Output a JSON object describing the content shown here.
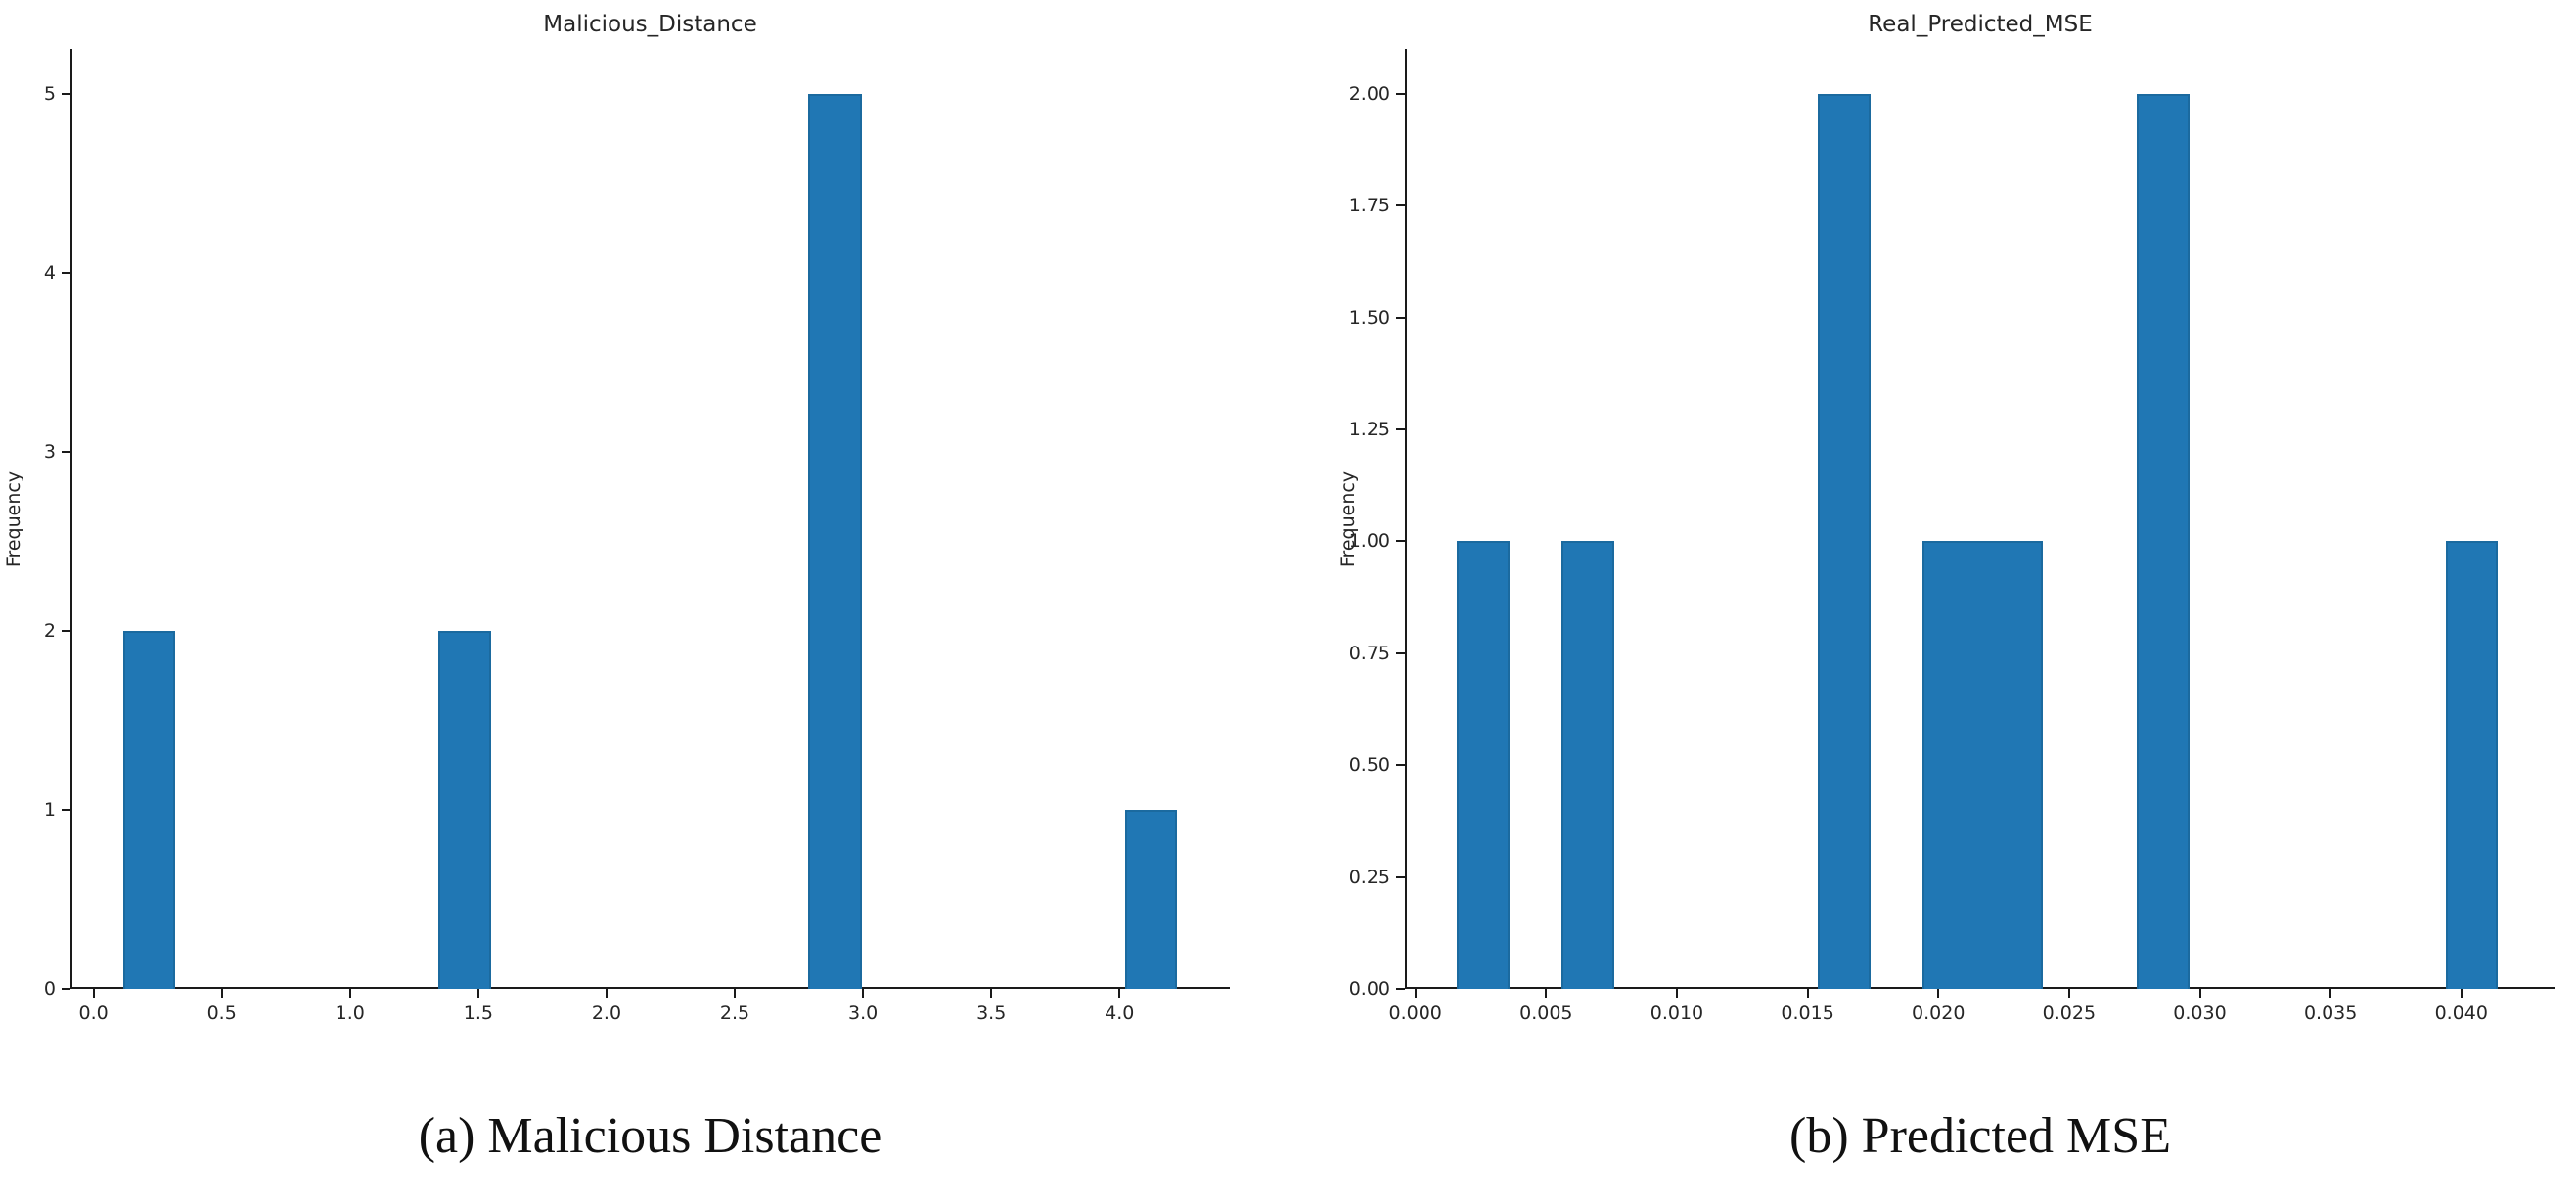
{
  "figure": {
    "background": "#ffffff"
  },
  "chart_data": [
    {
      "type": "bar",
      "subtype": "histogram",
      "title": "Malicious_Distance",
      "xlabel": "",
      "ylabel": "Frequency",
      "caption": "(a) Malicious Distance",
      "bar_color": "#2077b4",
      "bar_edge_color": "#1b6a9f",
      "grid": false,
      "xlim": [
        -0.09,
        4.43
      ],
      "ylim": [
        0,
        5.25
      ],
      "xticks": [
        0.0,
        0.5,
        1.0,
        1.5,
        2.0,
        2.5,
        3.0,
        3.5,
        4.0
      ],
      "xtick_labels": [
        "0.0",
        "0.5",
        "1.0",
        "1.5",
        "2.0",
        "2.5",
        "3.0",
        "3.5",
        "4.0"
      ],
      "yticks": [
        0,
        1,
        2,
        3,
        4,
        5
      ],
      "ytick_labels": [
        "0",
        "1",
        "2",
        "3",
        "4",
        "5"
      ],
      "bars": [
        {
          "x0": 0.115,
          "x1": 0.32,
          "frequency": 2
        },
        {
          "x0": 1.345,
          "x1": 1.55,
          "frequency": 2
        },
        {
          "x0": 2.785,
          "x1": 2.995,
          "frequency": 5
        },
        {
          "x0": 4.02,
          "x1": 4.225,
          "frequency": 1
        }
      ]
    },
    {
      "type": "bar",
      "subtype": "histogram",
      "title": "Real_Predicted_MSE",
      "xlabel": "",
      "ylabel": "Frequency",
      "caption": "(b) Predicted MSE",
      "bar_color": "#2077b4",
      "bar_edge_color": "#1b6a9f",
      "grid": false,
      "xlim": [
        -0.0004,
        0.0436
      ],
      "ylim": [
        0,
        2.1
      ],
      "xticks": [
        0.0,
        0.005,
        0.01,
        0.015,
        0.02,
        0.025,
        0.03,
        0.035,
        0.04
      ],
      "xtick_labels": [
        "0.000",
        "0.005",
        "0.010",
        "0.015",
        "0.020",
        "0.025",
        "0.030",
        "0.035",
        "0.040"
      ],
      "yticks": [
        0.0,
        0.25,
        0.5,
        0.75,
        1.0,
        1.25,
        1.5,
        1.75,
        2.0
      ],
      "ytick_labels": [
        "0.00",
        "0.25",
        "0.50",
        "0.75",
        "1.00",
        "1.25",
        "1.50",
        "1.75",
        "2.00"
      ],
      "bars": [
        {
          "x0": 0.0016,
          "x1": 0.0036,
          "frequency": 1
        },
        {
          "x0": 0.0056,
          "x1": 0.0076,
          "frequency": 1
        },
        {
          "x0": 0.0154,
          "x1": 0.0174,
          "frequency": 2
        },
        {
          "x0": 0.0194,
          "x1": 0.024,
          "frequency": 1
        },
        {
          "x0": 0.0276,
          "x1": 0.0296,
          "frequency": 2
        },
        {
          "x0": 0.0394,
          "x1": 0.0414,
          "frequency": 1
        }
      ]
    }
  ]
}
